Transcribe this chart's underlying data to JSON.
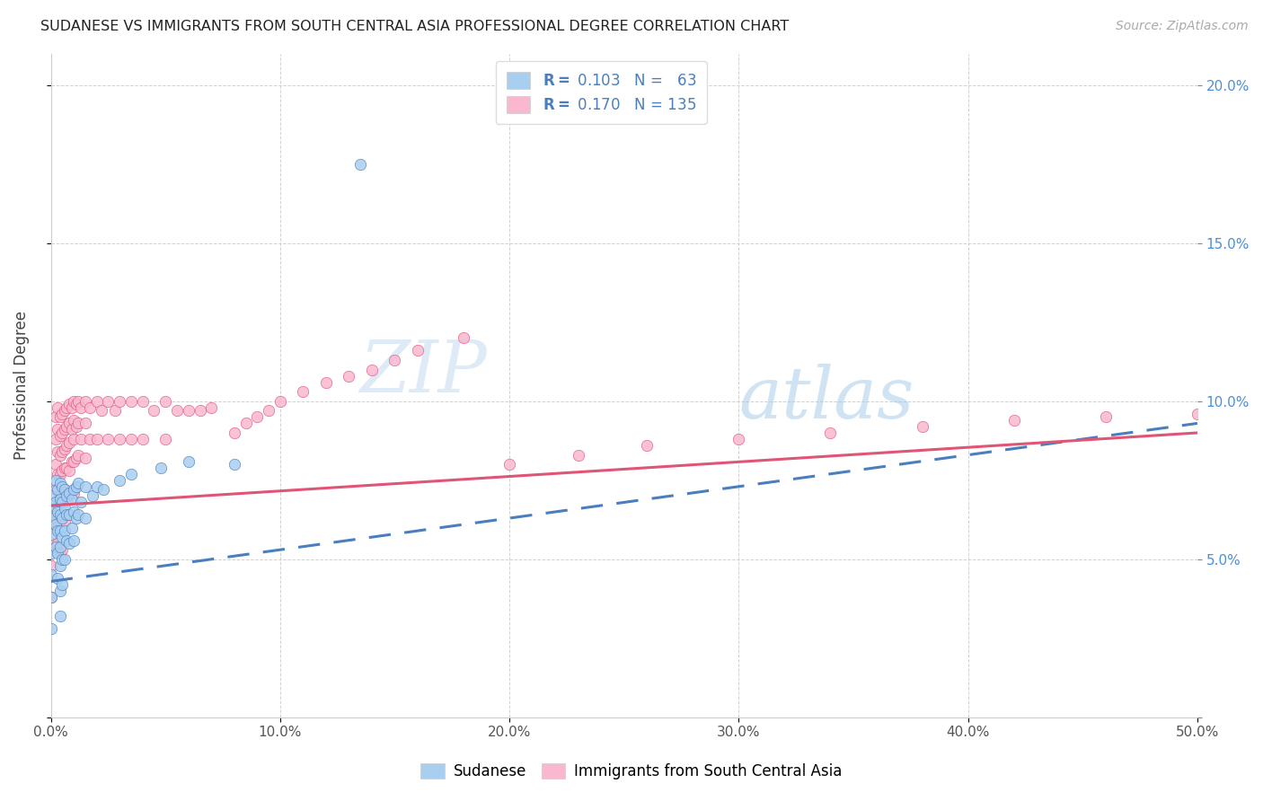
{
  "title": "SUDANESE VS IMMIGRANTS FROM SOUTH CENTRAL ASIA PROFESSIONAL DEGREE CORRELATION CHART",
  "source": "Source: ZipAtlas.com",
  "ylabel": "Professional Degree",
  "xlim": [
    0.0,
    0.5
  ],
  "ylim": [
    0.0,
    0.21
  ],
  "xticks": [
    0.0,
    0.1,
    0.2,
    0.3,
    0.4,
    0.5
  ],
  "yticks": [
    0.0,
    0.05,
    0.1,
    0.15,
    0.2
  ],
  "xtick_labels": [
    "0.0%",
    "10.0%",
    "20.0%",
    "30.0%",
    "40.0%",
    "50.0%"
  ],
  "ytick_labels_right": [
    "",
    "5.0%",
    "10.0%",
    "15.0%",
    "20.0%"
  ],
  "color_sudanese": "#a8cef0",
  "color_immigrants": "#f9b8d0",
  "color_line_sudanese": "#4a7fbf",
  "color_line_immigrants": "#e05575",
  "color_line_dashed": "#9ab8d8",
  "watermark_zip": "ZIP",
  "watermark_atlas": "atlas",
  "background_color": "#ffffff",
  "sudanese_x": [
    0.0,
    0.0,
    0.0,
    0.0,
    0.0,
    0.0,
    0.0,
    0.0,
    0.002,
    0.002,
    0.002,
    0.002,
    0.003,
    0.003,
    0.003,
    0.003,
    0.003,
    0.004,
    0.004,
    0.004,
    0.004,
    0.004,
    0.004,
    0.004,
    0.004,
    0.005,
    0.005,
    0.005,
    0.005,
    0.005,
    0.005,
    0.006,
    0.006,
    0.006,
    0.006,
    0.007,
    0.007,
    0.007,
    0.008,
    0.008,
    0.008,
    0.009,
    0.009,
    0.01,
    0.01,
    0.01,
    0.011,
    0.011,
    0.012,
    0.012,
    0.013,
    0.015,
    0.015,
    0.018,
    0.02,
    0.023,
    0.03,
    0.035,
    0.048,
    0.06,
    0.08,
    0.135
  ],
  "sudanese_y": [
    0.07,
    0.067,
    0.063,
    0.058,
    0.052,
    0.045,
    0.038,
    0.028,
    0.075,
    0.068,
    0.061,
    0.054,
    0.072,
    0.065,
    0.059,
    0.052,
    0.044,
    0.074,
    0.069,
    0.064,
    0.059,
    0.054,
    0.048,
    0.04,
    0.032,
    0.073,
    0.068,
    0.063,
    0.057,
    0.05,
    0.042,
    0.072,
    0.066,
    0.059,
    0.05,
    0.07,
    0.064,
    0.056,
    0.071,
    0.064,
    0.055,
    0.069,
    0.06,
    0.072,
    0.065,
    0.056,
    0.073,
    0.063,
    0.074,
    0.064,
    0.068,
    0.073,
    0.063,
    0.07,
    0.073,
    0.072,
    0.075,
    0.077,
    0.079,
    0.081,
    0.08,
    0.175
  ],
  "immigrants_x": [
    0.0,
    0.0,
    0.0,
    0.0,
    0.0,
    0.002,
    0.002,
    0.002,
    0.002,
    0.002,
    0.003,
    0.003,
    0.003,
    0.003,
    0.003,
    0.003,
    0.004,
    0.004,
    0.004,
    0.004,
    0.004,
    0.004,
    0.004,
    0.005,
    0.005,
    0.005,
    0.005,
    0.005,
    0.005,
    0.005,
    0.006,
    0.006,
    0.006,
    0.006,
    0.006,
    0.006,
    0.007,
    0.007,
    0.007,
    0.007,
    0.007,
    0.008,
    0.008,
    0.008,
    0.008,
    0.009,
    0.009,
    0.009,
    0.01,
    0.01,
    0.01,
    0.01,
    0.01,
    0.011,
    0.011,
    0.011,
    0.012,
    0.012,
    0.012,
    0.013,
    0.013,
    0.015,
    0.015,
    0.015,
    0.017,
    0.017,
    0.02,
    0.02,
    0.022,
    0.025,
    0.025,
    0.028,
    0.03,
    0.03,
    0.035,
    0.035,
    0.04,
    0.04,
    0.045,
    0.05,
    0.05,
    0.055,
    0.06,
    0.065,
    0.07,
    0.08,
    0.085,
    0.09,
    0.095,
    0.1,
    0.11,
    0.12,
    0.13,
    0.14,
    0.15,
    0.16,
    0.18,
    0.2,
    0.23,
    0.26,
    0.3,
    0.34,
    0.38,
    0.42,
    0.46,
    0.5
  ],
  "immigrants_y": [
    0.065,
    0.06,
    0.055,
    0.048,
    0.038,
    0.095,
    0.088,
    0.08,
    0.072,
    0.062,
    0.098,
    0.091,
    0.084,
    0.077,
    0.068,
    0.055,
    0.095,
    0.089,
    0.083,
    0.077,
    0.07,
    0.062,
    0.052,
    0.096,
    0.09,
    0.084,
    0.078,
    0.071,
    0.063,
    0.053,
    0.097,
    0.091,
    0.085,
    0.079,
    0.072,
    0.062,
    0.098,
    0.092,
    0.086,
    0.079,
    0.069,
    0.099,
    0.093,
    0.087,
    0.078,
    0.098,
    0.091,
    0.081,
    0.1,
    0.094,
    0.088,
    0.081,
    0.071,
    0.099,
    0.092,
    0.082,
    0.1,
    0.093,
    0.083,
    0.098,
    0.088,
    0.1,
    0.093,
    0.082,
    0.098,
    0.088,
    0.1,
    0.088,
    0.097,
    0.1,
    0.088,
    0.097,
    0.1,
    0.088,
    0.1,
    0.088,
    0.1,
    0.088,
    0.097,
    0.1,
    0.088,
    0.097,
    0.097,
    0.097,
    0.098,
    0.09,
    0.093,
    0.095,
    0.097,
    0.1,
    0.103,
    0.106,
    0.108,
    0.11,
    0.113,
    0.116,
    0.12,
    0.08,
    0.083,
    0.086,
    0.088,
    0.09,
    0.092,
    0.094,
    0.095,
    0.096
  ],
  "sudanese_line_x0": 0.0,
  "sudanese_line_x1": 0.5,
  "sudanese_line_y0": 0.043,
  "sudanese_line_y1": 0.093,
  "immigrants_line_x0": 0.0,
  "immigrants_line_x1": 0.5,
  "immigrants_line_y0": 0.067,
  "immigrants_line_y1": 0.09
}
